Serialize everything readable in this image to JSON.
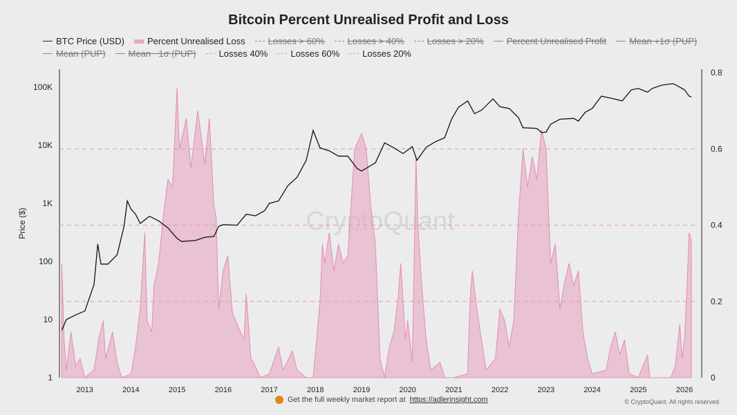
{
  "chart_data": {
    "type": "line",
    "title": "Bitcoin Percent Unrealised Profit and Loss",
    "ylabel": "Price ($)",
    "y_left": {
      "scale": "log",
      "lim": [
        1,
        200000
      ],
      "ticks": [
        1,
        10,
        100,
        1000,
        10000,
        100000
      ],
      "tick_labels": [
        "1",
        "10",
        "100",
        "1K",
        "10K",
        "100K"
      ]
    },
    "y_right": {
      "scale": "linear",
      "lim": [
        0,
        0.8
      ],
      "ticks": [
        0,
        0.2,
        0.4,
        0.6,
        0.8
      ],
      "tick_labels": [
        "0",
        "0.2",
        "0.4",
        "0.6",
        "0.8"
      ]
    },
    "x": {
      "lim": [
        2012.45,
        2026.3
      ],
      "ticks": [
        2013,
        2014,
        2015,
        2016,
        2017,
        2018,
        2019,
        2020,
        2021,
        2022,
        2023,
        2024,
        2025,
        2026
      ],
      "tick_labels": [
        "2013",
        "2014",
        "2015",
        "2016",
        "2017",
        "2018",
        "2019",
        "2020",
        "2021",
        "2022",
        "2023",
        "2024",
        "2025",
        "2026"
      ]
    },
    "grid": false,
    "legend_position": "top",
    "legend": [
      {
        "label": "BTC Price (USD)",
        "style": "line",
        "hidden": false
      },
      {
        "label": "Percent Unrealised Loss",
        "style": "area",
        "hidden": false
      },
      {
        "label": "Losses > 60%",
        "style": "dash",
        "hidden": true
      },
      {
        "label": "Losses > 40%",
        "style": "dash",
        "hidden": true
      },
      {
        "label": "Losses > 20%",
        "style": "dash",
        "hidden": true
      },
      {
        "label": "Percent Unrealised Profit",
        "style": "line",
        "hidden": true
      },
      {
        "label": "Mean +1σ (PUP)",
        "style": "line",
        "hidden": true
      },
      {
        "label": "Mean (PUP)",
        "style": "line",
        "hidden": true
      },
      {
        "label": "Mean −1σ (PUP)",
        "style": "line",
        "hidden": true
      },
      {
        "label": "Losses 40%",
        "style": "pinkdash",
        "hidden": false
      },
      {
        "label": "Losses 60%",
        "style": "pinkdash",
        "hidden": false
      },
      {
        "label": "Losses 20%",
        "style": "pinkdash",
        "hidden": false
      }
    ],
    "threshold_lines": [
      0.2,
      0.4,
      0.6
    ],
    "colors": {
      "price": "#111111",
      "loss_fill": "#e8a6c4",
      "loss_line": "#e48bb5",
      "threshold": "#e39aa4"
    },
    "series": [
      {
        "name": "BTC Price (USD)",
        "axis": "left",
        "points": [
          [
            2012.5,
            6.5
          ],
          [
            2012.6,
            10
          ],
          [
            2012.8,
            12
          ],
          [
            2013.0,
            14
          ],
          [
            2013.2,
            40
          ],
          [
            2013.28,
            200
          ],
          [
            2013.35,
            90
          ],
          [
            2013.5,
            90
          ],
          [
            2013.7,
            130
          ],
          [
            2013.85,
            400
          ],
          [
            2013.92,
            1100
          ],
          [
            2014.0,
            800
          ],
          [
            2014.1,
            650
          ],
          [
            2014.2,
            450
          ],
          [
            2014.4,
            600
          ],
          [
            2014.6,
            500
          ],
          [
            2014.8,
            380
          ],
          [
            2015.0,
            250
          ],
          [
            2015.1,
            220
          ],
          [
            2015.4,
            230
          ],
          [
            2015.6,
            260
          ],
          [
            2015.8,
            270
          ],
          [
            2015.9,
            400
          ],
          [
            2016.0,
            430
          ],
          [
            2016.3,
            420
          ],
          [
            2016.5,
            650
          ],
          [
            2016.7,
            610
          ],
          [
            2016.9,
            750
          ],
          [
            2017.0,
            1000
          ],
          [
            2017.2,
            1100
          ],
          [
            2017.4,
            2000
          ],
          [
            2017.6,
            2800
          ],
          [
            2017.8,
            5500
          ],
          [
            2017.95,
            18000
          ],
          [
            2018.1,
            9000
          ],
          [
            2018.3,
            8000
          ],
          [
            2018.5,
            6500
          ],
          [
            2018.7,
            6500
          ],
          [
            2018.9,
            4000
          ],
          [
            2019.0,
            3600
          ],
          [
            2019.3,
            5000
          ],
          [
            2019.5,
            11000
          ],
          [
            2019.7,
            9000
          ],
          [
            2019.9,
            7200
          ],
          [
            2020.1,
            9500
          ],
          [
            2020.2,
            5500
          ],
          [
            2020.4,
            9200
          ],
          [
            2020.6,
            11500
          ],
          [
            2020.8,
            13500
          ],
          [
            2020.95,
            28000
          ],
          [
            2021.1,
            45000
          ],
          [
            2021.3,
            58000
          ],
          [
            2021.45,
            35000
          ],
          [
            2021.6,
            40000
          ],
          [
            2021.85,
            63000
          ],
          [
            2022.0,
            46000
          ],
          [
            2022.2,
            43000
          ],
          [
            2022.4,
            30000
          ],
          [
            2022.5,
            20000
          ],
          [
            2022.8,
            19500
          ],
          [
            2022.9,
            16500
          ],
          [
            2023.0,
            16800
          ],
          [
            2023.1,
            23000
          ],
          [
            2023.3,
            28000
          ],
          [
            2023.6,
            29000
          ],
          [
            2023.7,
            26000
          ],
          [
            2023.85,
            37000
          ],
          [
            2024.0,
            43000
          ],
          [
            2024.2,
            70000
          ],
          [
            2024.5,
            62000
          ],
          [
            2024.65,
            58000
          ],
          [
            2024.85,
            90000
          ],
          [
            2025.0,
            95000
          ],
          [
            2025.2,
            82000
          ],
          [
            2025.3,
            95000
          ],
          [
            2025.5,
            108000
          ],
          [
            2025.75,
            115000
          ],
          [
            2025.85,
            105000
          ],
          [
            2026.0,
            90000
          ],
          [
            2026.1,
            70000
          ],
          [
            2026.15,
            68000
          ]
        ]
      },
      {
        "name": "Percent Unrealised Loss",
        "axis": "right",
        "points": [
          [
            2012.5,
            0.3
          ],
          [
            2012.55,
            0.1
          ],
          [
            2012.6,
            0.02
          ],
          [
            2012.7,
            0.12
          ],
          [
            2012.8,
            0.03
          ],
          [
            2012.9,
            0.05
          ],
          [
            2013.0,
            0.0
          ],
          [
            2013.2,
            0.02
          ],
          [
            2013.3,
            0.1
          ],
          [
            2013.4,
            0.15
          ],
          [
            2013.45,
            0.05
          ],
          [
            2013.6,
            0.12
          ],
          [
            2013.7,
            0.04
          ],
          [
            2013.8,
            0.0
          ],
          [
            2014.0,
            0.01
          ],
          [
            2014.1,
            0.08
          ],
          [
            2014.2,
            0.18
          ],
          [
            2014.3,
            0.38
          ],
          [
            2014.35,
            0.15
          ],
          [
            2014.45,
            0.12
          ],
          [
            2014.5,
            0.24
          ],
          [
            2014.6,
            0.3
          ],
          [
            2014.7,
            0.42
          ],
          [
            2014.8,
            0.52
          ],
          [
            2014.9,
            0.5
          ],
          [
            2015.0,
            0.76
          ],
          [
            2015.05,
            0.6
          ],
          [
            2015.2,
            0.68
          ],
          [
            2015.3,
            0.55
          ],
          [
            2015.45,
            0.7
          ],
          [
            2015.6,
            0.56
          ],
          [
            2015.7,
            0.68
          ],
          [
            2015.8,
            0.45
          ],
          [
            2015.85,
            0.42
          ],
          [
            2015.9,
            0.18
          ],
          [
            2016.0,
            0.28
          ],
          [
            2016.1,
            0.32
          ],
          [
            2016.2,
            0.17
          ],
          [
            2016.3,
            0.14
          ],
          [
            2016.45,
            0.1
          ],
          [
            2016.5,
            0.22
          ],
          [
            2016.6,
            0.05
          ],
          [
            2016.7,
            0.03
          ],
          [
            2016.8,
            0.0
          ],
          [
            2017.0,
            0.01
          ],
          [
            2017.2,
            0.08
          ],
          [
            2017.3,
            0.02
          ],
          [
            2017.5,
            0.07
          ],
          [
            2017.6,
            0.02
          ],
          [
            2017.8,
            0.0
          ],
          [
            2017.95,
            0.0
          ],
          [
            2018.1,
            0.2
          ],
          [
            2018.15,
            0.35
          ],
          [
            2018.2,
            0.3
          ],
          [
            2018.3,
            0.38
          ],
          [
            2018.4,
            0.28
          ],
          [
            2018.5,
            0.35
          ],
          [
            2018.6,
            0.3
          ],
          [
            2018.7,
            0.32
          ],
          [
            2018.85,
            0.6
          ],
          [
            2019.0,
            0.64
          ],
          [
            2019.1,
            0.6
          ],
          [
            2019.2,
            0.45
          ],
          [
            2019.3,
            0.35
          ],
          [
            2019.4,
            0.05
          ],
          [
            2019.5,
            0.0
          ],
          [
            2019.6,
            0.08
          ],
          [
            2019.7,
            0.12
          ],
          [
            2019.8,
            0.22
          ],
          [
            2019.85,
            0.3
          ],
          [
            2019.95,
            0.1
          ],
          [
            2020.0,
            0.15
          ],
          [
            2020.1,
            0.04
          ],
          [
            2020.18,
            0.58
          ],
          [
            2020.22,
            0.4
          ],
          [
            2020.3,
            0.25
          ],
          [
            2020.4,
            0.1
          ],
          [
            2020.5,
            0.02
          ],
          [
            2020.7,
            0.04
          ],
          [
            2020.8,
            0.0
          ],
          [
            2021.0,
            0.0
          ],
          [
            2021.3,
            0.01
          ],
          [
            2021.35,
            0.2
          ],
          [
            2021.4,
            0.28
          ],
          [
            2021.5,
            0.18
          ],
          [
            2021.6,
            0.1
          ],
          [
            2021.7,
            0.02
          ],
          [
            2021.9,
            0.05
          ],
          [
            2022.0,
            0.18
          ],
          [
            2022.1,
            0.15
          ],
          [
            2022.2,
            0.08
          ],
          [
            2022.3,
            0.15
          ],
          [
            2022.4,
            0.42
          ],
          [
            2022.5,
            0.6
          ],
          [
            2022.6,
            0.5
          ],
          [
            2022.7,
            0.58
          ],
          [
            2022.8,
            0.52
          ],
          [
            2022.9,
            0.65
          ],
          [
            2023.0,
            0.6
          ],
          [
            2023.1,
            0.3
          ],
          [
            2023.2,
            0.35
          ],
          [
            2023.3,
            0.18
          ],
          [
            2023.4,
            0.25
          ],
          [
            2023.5,
            0.3
          ],
          [
            2023.6,
            0.24
          ],
          [
            2023.7,
            0.28
          ],
          [
            2023.8,
            0.12
          ],
          [
            2023.9,
            0.05
          ],
          [
            2024.0,
            0.01
          ],
          [
            2024.3,
            0.02
          ],
          [
            2024.4,
            0.08
          ],
          [
            2024.5,
            0.12
          ],
          [
            2024.6,
            0.06
          ],
          [
            2024.7,
            0.1
          ],
          [
            2024.8,
            0.01
          ],
          [
            2025.0,
            0.0
          ],
          [
            2025.1,
            0.03
          ],
          [
            2025.2,
            0.06
          ],
          [
            2025.25,
            0.0
          ],
          [
            2025.5,
            0.0
          ],
          [
            2025.7,
            0.0
          ],
          [
            2025.8,
            0.03
          ],
          [
            2025.9,
            0.14
          ],
          [
            2025.95,
            0.05
          ],
          [
            2026.0,
            0.1
          ],
          [
            2026.05,
            0.22
          ],
          [
            2026.1,
            0.38
          ],
          [
            2026.15,
            0.36
          ]
        ]
      }
    ]
  },
  "watermark": "CryptoQuant",
  "footer": {
    "text": "Get the full weekly market report at",
    "link": "https://adlerinsight.com",
    "copyright": "© CryptoQuant. All rights reserved"
  }
}
